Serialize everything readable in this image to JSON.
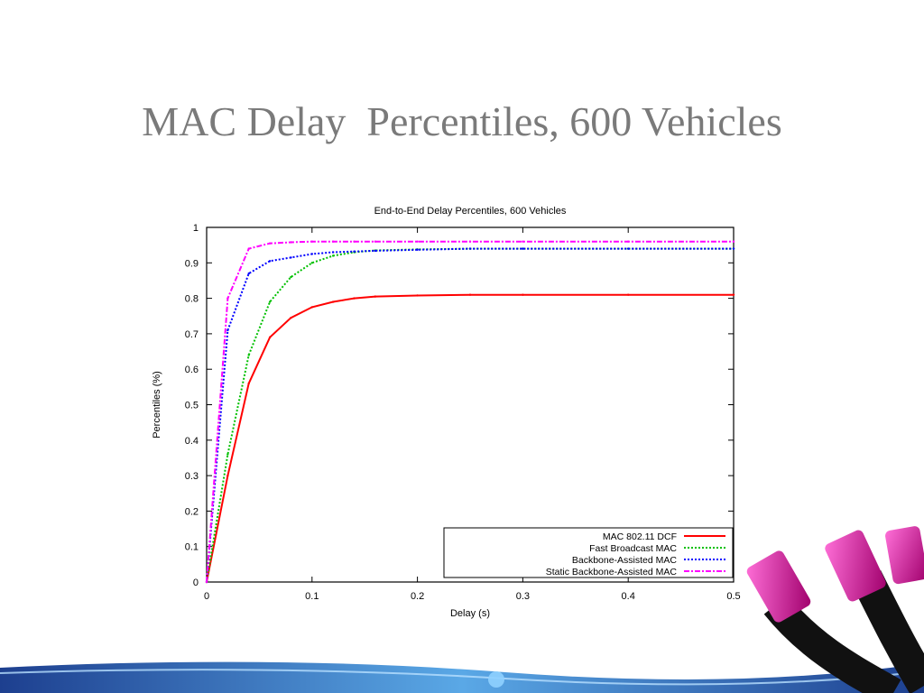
{
  "slide": {
    "title": "MAC Delay  Percentiles, 600 Vehicles"
  },
  "chart_data": {
    "type": "line",
    "title": "End-to-End Delay Percentiles, 600 Vehicles",
    "xlabel": "Delay (s)",
    "ylabel": "Percentiles (%)",
    "xlim": [
      0,
      0.5
    ],
    "ylim": [
      0,
      1
    ],
    "xticks": [
      "0",
      "0.1",
      "0.2",
      "0.3",
      "0.4",
      "0.5"
    ],
    "yticks": [
      "0",
      "0.1",
      "0.2",
      "0.3",
      "0.4",
      "0.5",
      "0.6",
      "0.7",
      "0.8",
      "0.9",
      "1"
    ],
    "grid": false,
    "legend_position": "bottom-right",
    "x": [
      0,
      0.02,
      0.04,
      0.06,
      0.08,
      0.1,
      0.12,
      0.14,
      0.16,
      0.2,
      0.25,
      0.3,
      0.4,
      0.5
    ],
    "series": [
      {
        "name": "MAC 802.11 DCF",
        "color": "#ff0000",
        "dash": "solid",
        "values": [
          0,
          0.3,
          0.56,
          0.69,
          0.745,
          0.775,
          0.79,
          0.8,
          0.805,
          0.808,
          0.81,
          0.81,
          0.81,
          0.81
        ]
      },
      {
        "name": "Fast Broadcast MAC",
        "color": "#00c000",
        "dash": "dotted",
        "values": [
          0,
          0.36,
          0.64,
          0.79,
          0.86,
          0.9,
          0.92,
          0.93,
          0.935,
          0.938,
          0.94,
          0.94,
          0.94,
          0.94
        ]
      },
      {
        "name": "Backbone-Assisted MAC",
        "color": "#0000ff",
        "dash": "dotted",
        "values": [
          0,
          0.71,
          0.87,
          0.905,
          0.915,
          0.925,
          0.93,
          0.932,
          0.934,
          0.937,
          0.94,
          0.94,
          0.94,
          0.94
        ]
      },
      {
        "name": "Static Backbone-Assisted MAC",
        "color": "#ff00ff",
        "dash": "dashdot",
        "values": [
          0,
          0.8,
          0.94,
          0.955,
          0.958,
          0.96,
          0.96,
          0.96,
          0.96,
          0.96,
          0.96,
          0.96,
          0.96,
          0.96
        ]
      }
    ]
  }
}
